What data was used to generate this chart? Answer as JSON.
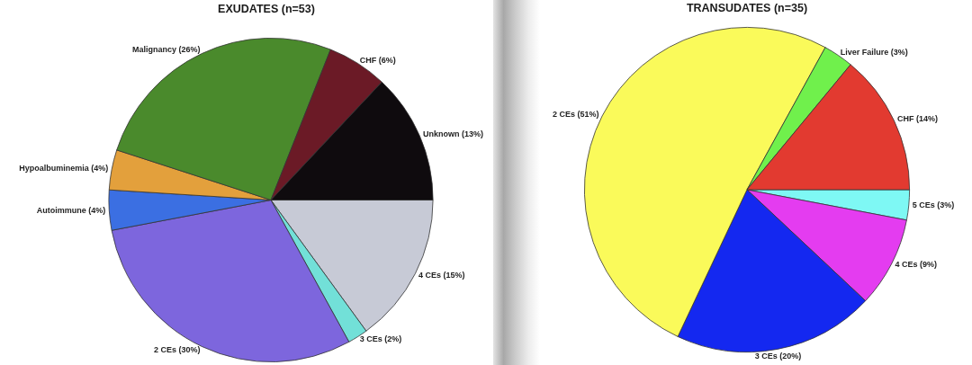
{
  "chart_data": [
    {
      "type": "pie",
      "title": "EXUDATES (n=53)",
      "categories": [
        "4 CEs",
        "3 CEs",
        "2 CEs",
        "Autoimmune",
        "Hypoalbuminemia",
        "Malignancy",
        "CHF",
        "Unknown"
      ],
      "values": [
        15,
        2,
        30,
        4,
        4,
        26,
        6,
        13
      ],
      "value_labels": [
        "(15%)",
        "(2%)",
        "(30%)",
        "(4%)",
        "(4%)",
        "(26%)",
        "(6%)",
        "(13%)"
      ],
      "colors": [
        "#c7cad6",
        "#72e0d8",
        "#7d66dd",
        "#3b6fe2",
        "#e3a03c",
        "#4a8a2c",
        "#6b1a26",
        "#0f0b0e"
      ],
      "legend": false
    },
    {
      "type": "pie",
      "title": "TRANSUDATES (n=35)",
      "categories": [
        "5 CEs",
        "4 CEs",
        "3 CEs",
        "2 CEs",
        "Liver Failure",
        "CHF"
      ],
      "values": [
        3,
        9,
        20,
        51,
        3,
        14
      ],
      "value_labels": [
        "(3%)",
        "(9%)",
        "(20%)",
        "(51%)",
        "(3%)",
        "(14%)"
      ],
      "colors": [
        "#7ef8f4",
        "#e43cf0",
        "#1428f0",
        "#fafa5a",
        "#70f04c",
        "#e23a30"
      ],
      "legend": false
    }
  ]
}
